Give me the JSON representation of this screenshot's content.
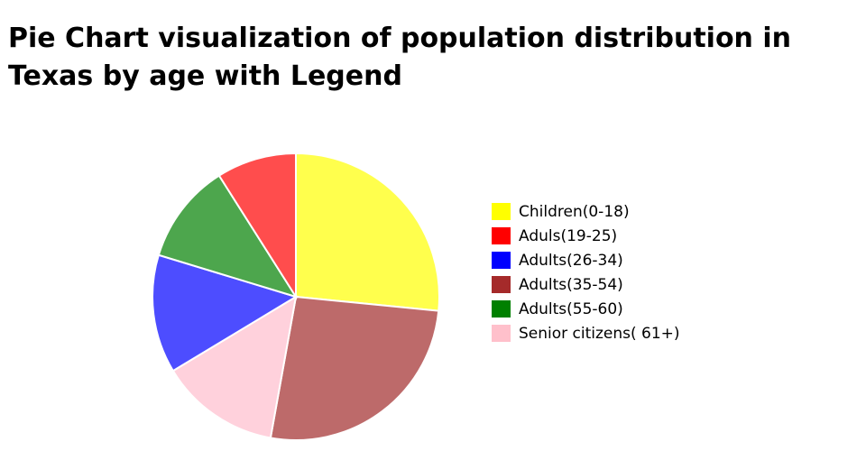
{
  "chart_data": {
    "type": "pie",
    "title": "Pie Chart visualization of population distribution in Texas by age with Legend",
    "legend_position": "right",
    "slices": [
      {
        "label": "Children(0-18)",
        "value": 26.3,
        "color": "#ffff4d",
        "legend_color": "#ffff00"
      },
      {
        "label": "Aduls(19-25)",
        "value": 8.9,
        "color": "#ff4d4d",
        "legend_color": "#ff0000"
      },
      {
        "label": "Adults(26-34)",
        "value": 13.2,
        "color": "#4d4dff",
        "legend_color": "#0000ff"
      },
      {
        "label": "Adults(35-54)",
        "value": 26.0,
        "color": "#bd6a6a",
        "legend_color": "#a52a2a"
      },
      {
        "label": "Adults(55-60)",
        "value": 11.2,
        "color": "#4da64d",
        "legend_color": "#008000"
      },
      {
        "label": "Senior citizens( 61+)",
        "value": 13.4,
        "color": "#ffd1dc",
        "legend_color": "#ffc0cb"
      }
    ],
    "pie_draw_order": [
      0,
      3,
      5,
      2,
      4,
      1
    ]
  }
}
